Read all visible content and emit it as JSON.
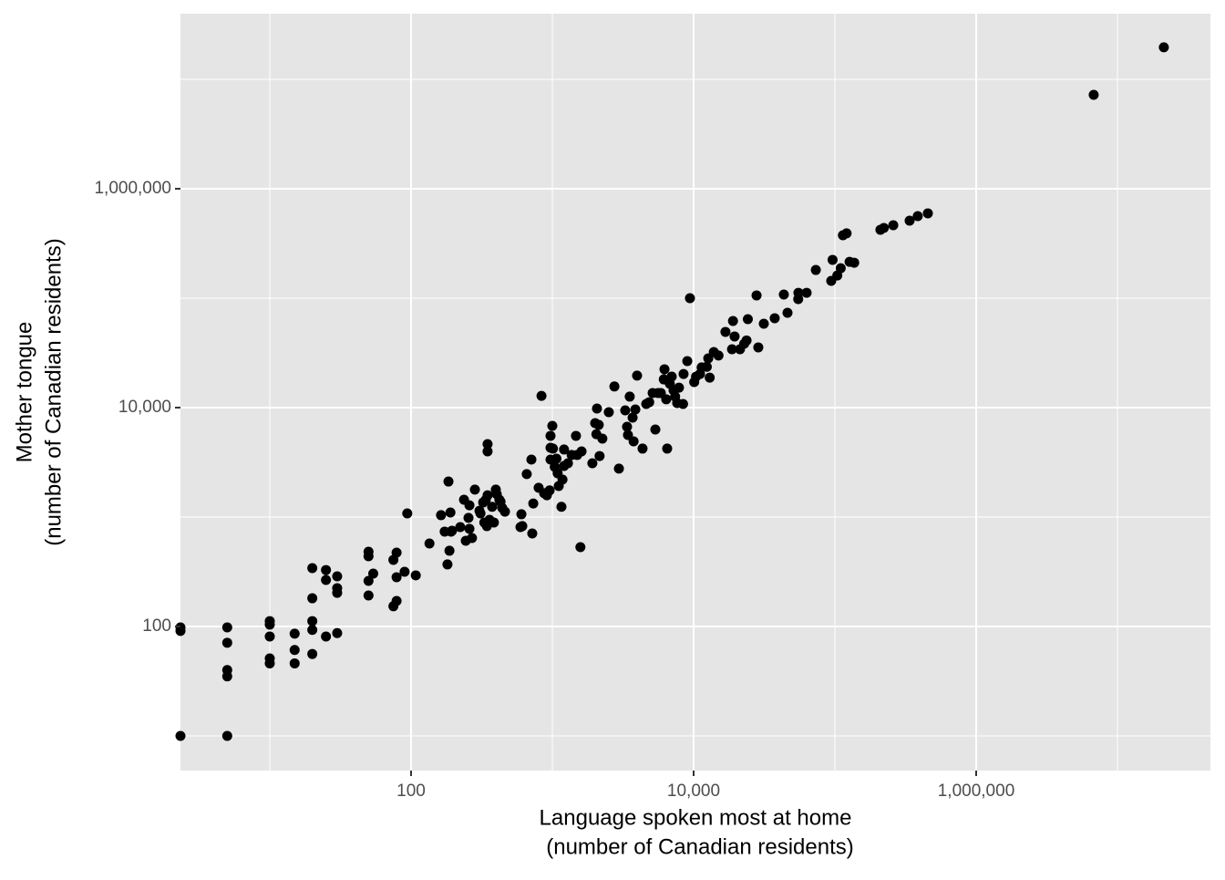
{
  "chart_data": {
    "type": "scatter",
    "xlabel": [
      "Language spoken most at home",
      "(number of Canadian residents)"
    ],
    "ylabel": [
      "Mother tongue",
      "(number of Canadian residents)"
    ],
    "xlog": true,
    "ylog": true,
    "grid": true,
    "panel_color": "#e5e5e5",
    "grid_color": "#ffffff",
    "color": "#000000",
    "xlim": [
      2.333,
      45500000
    ],
    "ylim": [
      4.82,
      39800000
    ],
    "xticks": [
      {
        "value": 100,
        "label": "100"
      },
      {
        "value": 10000,
        "label": "10,000"
      },
      {
        "value": 1000000,
        "label": "1,000,000"
      }
    ],
    "yticks": [
      {
        "value": 100,
        "label": "100"
      },
      {
        "value": 10000,
        "label": "10,000"
      },
      {
        "value": 1000000,
        "label": "1,000,000"
      }
    ],
    "xminor": [
      10,
      1000,
      100000,
      10000000
    ],
    "yminor": [
      10,
      1000,
      100000,
      10000000
    ],
    "x": [
      2.333,
      2.333,
      2.333,
      5,
      5,
      5,
      5,
      5,
      10,
      10,
      10,
      10,
      10,
      15,
      15,
      15,
      20,
      20,
      20,
      20,
      20,
      25,
      25,
      25,
      30,
      30,
      30,
      30,
      50,
      50,
      50,
      50,
      54,
      75,
      79,
      79,
      75,
      79,
      90,
      108,
      94,
      135,
      163,
      173,
      181,
      187,
      192,
      184,
      190,
      195,
      223,
      237,
      244,
      255,
      259,
      259,
      270,
      283,
      305,
      310,
      324,
      330,
      338,
      344,
      348,
      348,
      348,
      359,
      375,
      386,
      398,
      404,
      422,
      430,
      442,
      462,
      595,
      604,
      613,
      659,
      711,
      733,
      721,
      800,
      838,
      875,
      915,
      957,
      971,
      1000,
      971,
      971,
      1010,
      1040,
      1070,
      1090,
      1110,
      1180,
      1160,
      1210,
      1210,
      1290,
      1370,
      1470,
      1500,
      1610,
      1580,
      1920,
      2010,
      2050,
      2070,
      2130,
      2160,
      2260,
      2510,
      2750,
      2960,
      3280,
      3380,
      3430,
      3530,
      3700,
      3760,
      3870,
      3980,
      4350,
      4620,
      4850,
      5130,
      5360,
      5600,
      5860,
      6220,
      6500,
      6150,
      6400,
      6790,
      7000,
      7210,
      7400,
      7650,
      7880,
      8420,
      8490,
      9020,
      9420,
      10100,
      10400,
      11100,
      11400,
      12400,
      12700,
      13000,
      13900,
      15000,
      16800,
      18700,
      19000,
      19500,
      21300,
      22800,
      23700,
      24200,
      27900,
      28700,
      31400,
      37500,
      43500,
      46200,
      55000,
      55200,
      63100,
      73300,
      94200,
      96300,
      104000,
      110000,
      114000,
      121000,
      127000,
      137000,
      210000,
      222000,
      259000,
      338000,
      386000,
      455000,
      6790000,
      21300000
    ],
    "values": [
      91,
      98,
      10,
      10,
      98,
      71,
      40,
      35,
      112,
      104,
      81,
      51,
      46,
      86,
      61,
      46,
      341,
      181,
      112,
      93,
      56,
      328,
      266,
      81,
      287,
      224,
      203,
      87,
      482,
      438,
      261,
      192,
      304,
      406,
      473,
      282,
      153,
      171,
      316,
      293,
      1080,
      573,
      1040,
      736,
      369,
      492,
      736,
      2110,
      1100,
      750,
      809,
      1440,
      607,
      982,
      1280,
      780,
      643,
      1780,
      1140,
      1080,
      1360,
      891,
      1440,
      826,
      4640,
      3980,
      1580,
      944,
      1240,
      891,
      1780,
      1620,
      1440,
      1380,
      1210,
      1120,
      809,
      1060,
      826,
      2470,
      3350,
      1330,
      708,
      1850,
      12800,
      1650,
      1580,
      1750,
      5520,
      6810,
      4300,
      3350,
      4220,
      2870,
      3410,
      2510,
      1920,
      2200,
      1240,
      4140,
      2930,
      3100,
      3690,
      5520,
      3690,
      3980,
      531,
      3100,
      7210,
      5720,
      9810,
      6950,
      3610,
      5210,
      9080,
      15600,
      2770,
      9440,
      6680,
      5620,
      12600,
      8090,
      4920,
      9620,
      19600,
      4220,
      10800,
      11200,
      13600,
      6310,
      13600,
      13600,
      22400,
      4220,
      18100,
      11900,
      16500,
      19200,
      14400,
      12600,
      11000,
      15200,
      10800,
      20300,
      26600,
      100000,
      17100,
      19200,
      20300,
      23300,
      23600,
      28200,
      18800,
      32200,
      29900,
      49200,
      34100,
      61900,
      44700,
      34100,
      38300,
      41100,
      64300,
      106000,
      35500,
      58400,
      65600,
      108000,
      73600,
      98100,
      112000,
      112000,
      181000,
      144000,
      224000,
      161000,
      188000,
      376000,
      391000,
      215000,
      211000,
      422000,
      438000,
      464000,
      511000,
      562000,
      596000,
      7210000,
      19600000
    ]
  }
}
